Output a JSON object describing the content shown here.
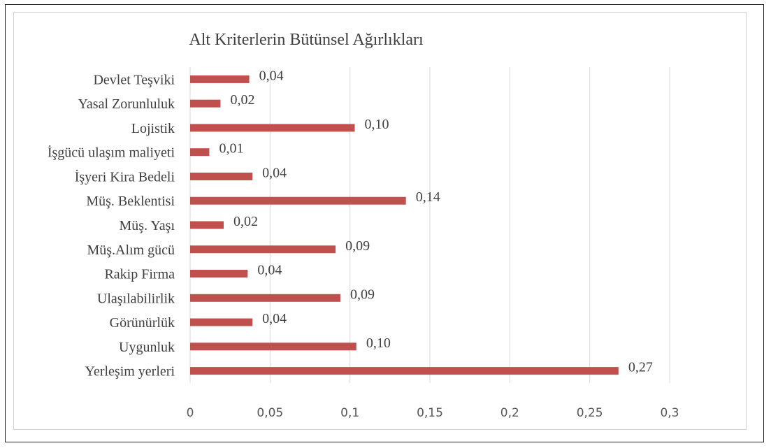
{
  "chart_data": {
    "type": "bar",
    "orientation": "horizontal",
    "title": "Alt Kriterlerin Bütünsel Ağırlıkları",
    "xlabel": "",
    "ylabel": "",
    "categories": [
      "Devlet Teşviki",
      "Yasal Zorunluluk",
      "Lojistik",
      "İşgücü ulaşım maliyeti",
      "İşyeri Kira Bedeli",
      "Müş. Beklentisi",
      "Müş. Yaşı",
      "Müş.Alım gücü",
      "Rakip Firma",
      "Ulaşılabilirlik",
      "Görünürlük",
      "Uygunluk",
      "Yerleşim yerleri"
    ],
    "values": [
      0.037,
      0.019,
      0.103,
      0.012,
      0.039,
      0.135,
      0.021,
      0.091,
      0.036,
      0.094,
      0.039,
      0.104,
      0.268
    ],
    "data_labels": [
      "0,04",
      "0,02",
      "0,10",
      "0,01",
      "0,04",
      "0,14",
      "0,02",
      "0,09",
      "0,04",
      "0,09",
      "0,04",
      "0,10",
      "0,27"
    ],
    "xlim": [
      0,
      0.3
    ],
    "xticks": [
      0,
      0.05,
      0.1,
      0.15,
      0.2,
      0.25,
      0.3
    ],
    "xtick_labels": [
      "0",
      "0,05",
      "0,1",
      "0,15",
      "0,2",
      "0,25",
      "0,3"
    ],
    "grid": "vertical",
    "legend": "none",
    "bar_color": "#c0504d",
    "grid_color": "#d9d9d9"
  }
}
